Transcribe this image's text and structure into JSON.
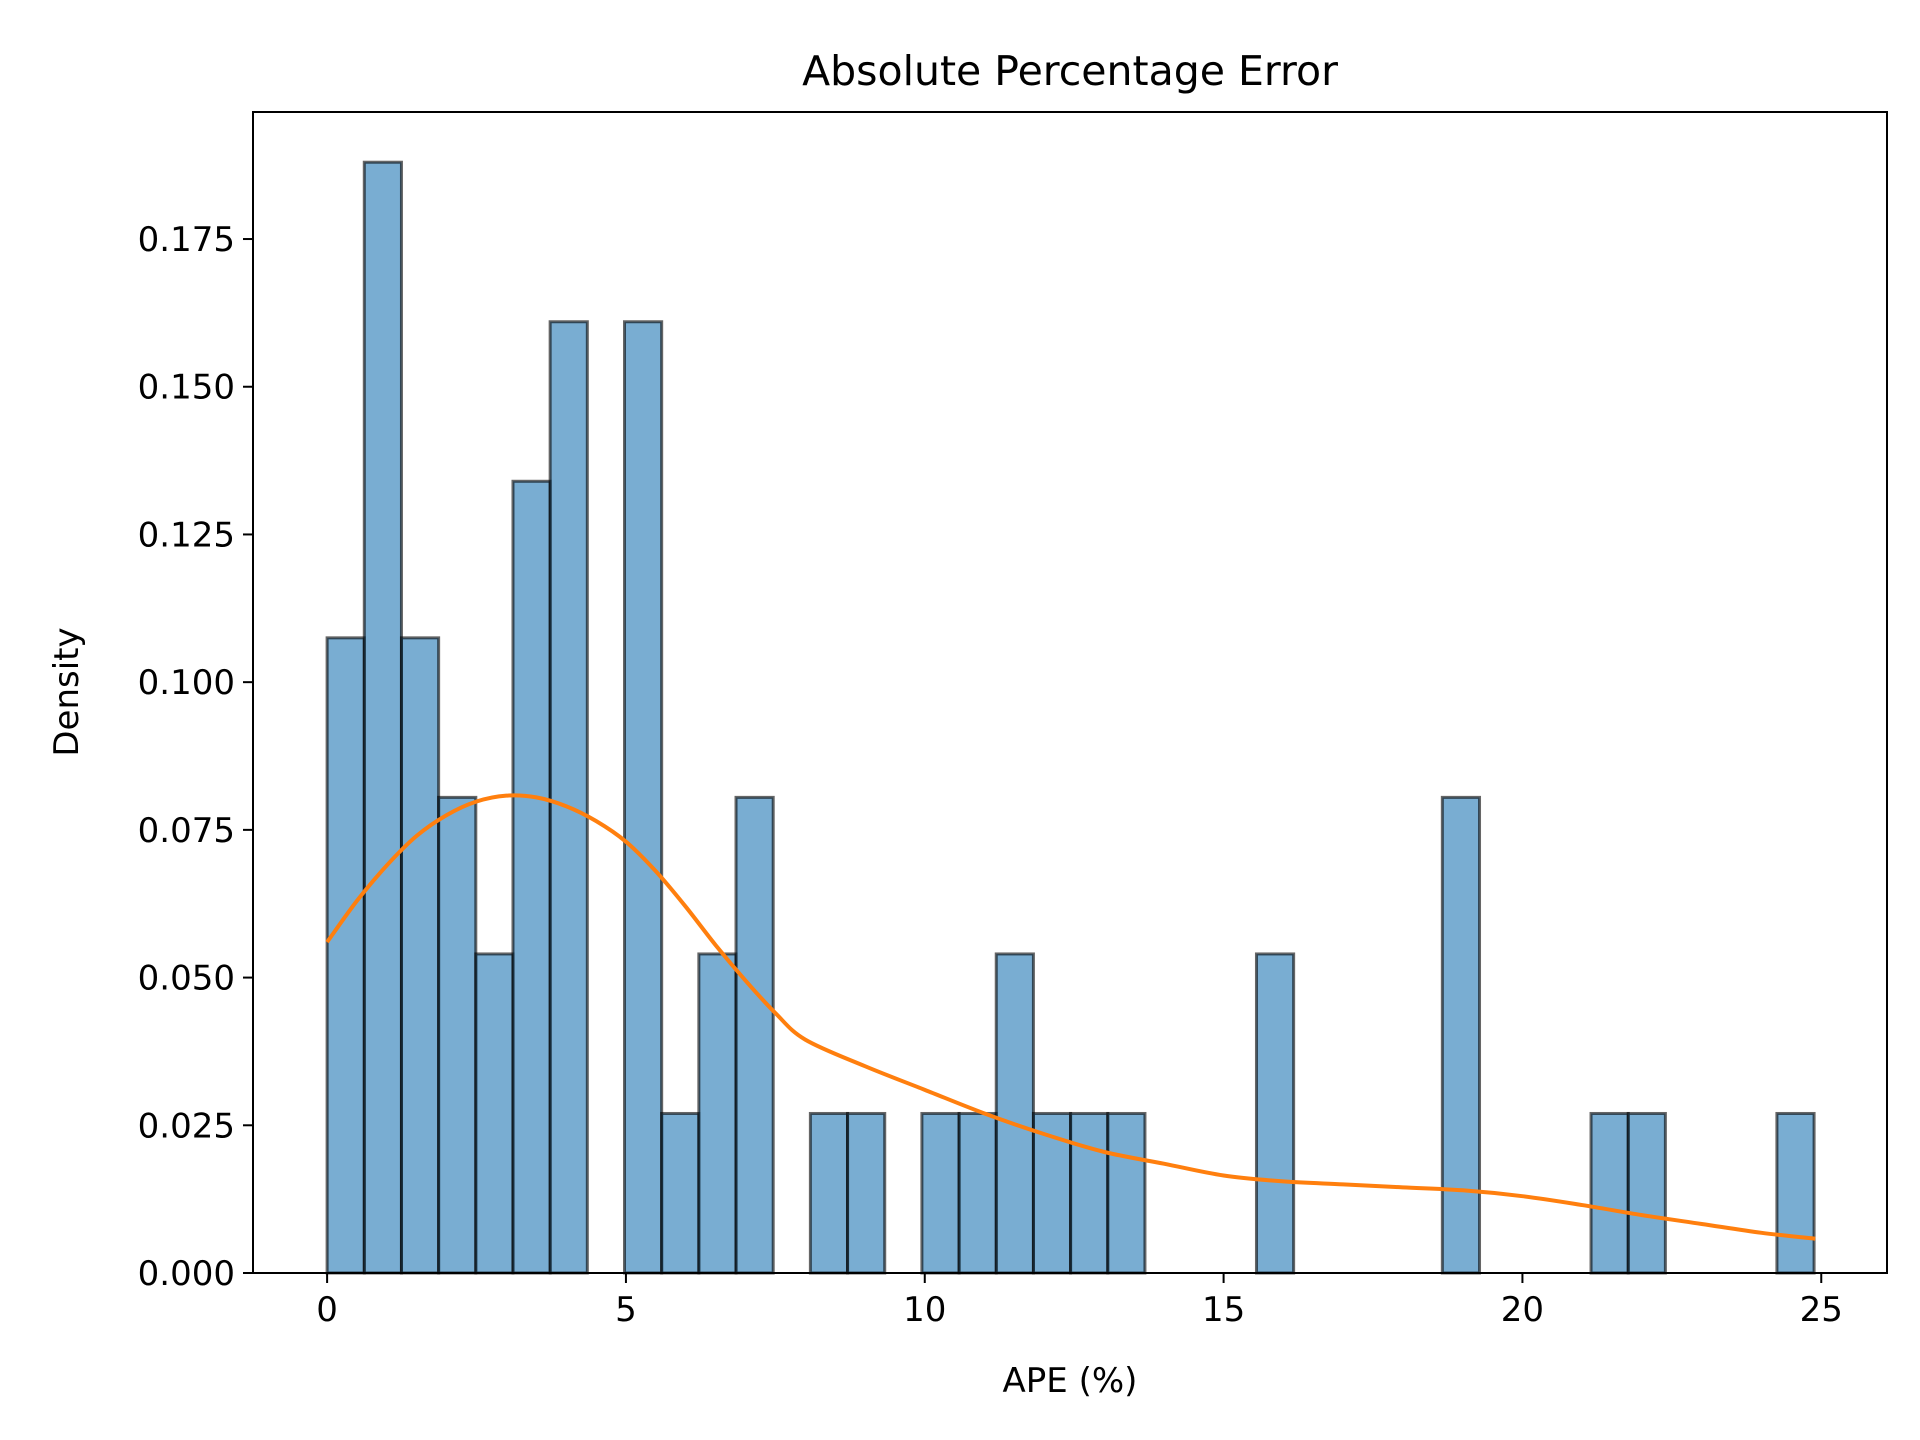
{
  "chart_data": {
    "type": "bar",
    "title": "Absolute Percentage Error",
    "xlabel": "APE (%)",
    "ylabel": "Density",
    "xlim": [
      -1.24,
      26.1
    ],
    "ylim": [
      0,
      0.1965
    ],
    "xticks": [
      0,
      5,
      10,
      15,
      20,
      25
    ],
    "yticks": [
      0.0,
      0.025,
      0.05,
      0.075,
      0.1,
      0.125,
      0.15,
      0.175
    ],
    "ytick_labels": [
      "0.000",
      "0.025",
      "0.050",
      "0.075",
      "0.100",
      "0.125",
      "0.150",
      "0.175"
    ],
    "xtick_labels": [
      "0",
      "5",
      "10",
      "15",
      "20",
      "25"
    ],
    "histogram": {
      "bin_start": 0.0,
      "bin_width": 0.622,
      "densities": [
        0.1075,
        0.188,
        0.1075,
        0.0805,
        0.054,
        0.134,
        0.161,
        0,
        0.161,
        0.027,
        0.054,
        0.0805,
        0,
        0.027,
        0.027,
        0,
        0.027,
        0.027,
        0.054,
        0.027,
        0.027,
        0.027,
        0,
        0,
        0,
        0.054,
        0,
        0,
        0,
        0,
        0.0805,
        0,
        0,
        0,
        0.027,
        0.027,
        0,
        0,
        0,
        0.027
      ],
      "color": "#1f77b4"
    },
    "kde": {
      "color": "#ff7f0e",
      "x": [
        0.0,
        0.5,
        1.0,
        1.5,
        2.0,
        2.5,
        3.0,
        3.5,
        4.0,
        4.5,
        5.0,
        5.5,
        6.0,
        6.5,
        7.0,
        7.5,
        8.0,
        9.0,
        10.0,
        11.0,
        12.0,
        13.0,
        14.0,
        15.0,
        16.0,
        17.0,
        18.0,
        19.0,
        20.0,
        21.0,
        22.0,
        23.0,
        24.0,
        24.9
      ],
      "y": [
        0.056,
        0.063,
        0.069,
        0.074,
        0.0775,
        0.0798,
        0.0808,
        0.0805,
        0.079,
        0.0765,
        0.073,
        0.068,
        0.062,
        0.0555,
        0.0495,
        0.044,
        0.0395,
        0.035,
        0.031,
        0.027,
        0.0235,
        0.0205,
        0.0185,
        0.0165,
        0.0155,
        0.015,
        0.0145,
        0.014,
        0.013,
        0.0115,
        0.0098,
        0.0083,
        0.0068,
        0.0058
      ]
    }
  }
}
